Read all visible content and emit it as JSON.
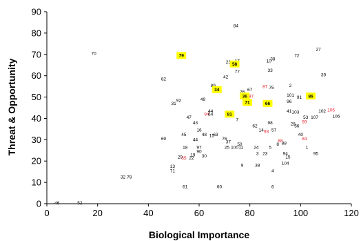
{
  "chart_data": {
    "type": "scatter",
    "title": "",
    "xlabel": "Biological Importance",
    "ylabel": "Threat & Opportunity",
    "xlim": [
      0,
      120
    ],
    "ylim": [
      0,
      90
    ],
    "xticks": [
      "0",
      "20",
      "40",
      "60",
      "80",
      "100",
      "120"
    ],
    "yticks": [
      "0",
      "10",
      "20",
      "30",
      "40",
      "50",
      "60",
      "70",
      "80",
      "90"
    ],
    "x_tick_values": [
      0,
      20,
      40,
      60,
      80,
      100,
      120
    ],
    "y_tick_values": [
      0,
      10,
      20,
      30,
      40,
      50,
      60,
      70,
      80,
      90
    ],
    "grid": false,
    "legend": "none",
    "colors": {
      "normal": "#000000",
      "red": "#e8232f",
      "highlight": "#ffff00"
    },
    "points": [
      {
        "label": "70",
        "x": 18.5,
        "y": 70.5
      },
      {
        "label": "84",
        "x": 74.5,
        "y": 83.5
      },
      {
        "label": "27",
        "x": 107,
        "y": 72.5
      },
      {
        "label": "72",
        "x": 98.5,
        "y": 69.5
      },
      {
        "label": "79",
        "x": 53,
        "y": 69.5,
        "hl": true
      },
      {
        "label": "23",
        "x": 71.5,
        "y": 66.5
      },
      {
        "label": "17",
        "x": 75,
        "y": 67
      },
      {
        "label": "58",
        "x": 74,
        "y": 65.5,
        "hl": true
      },
      {
        "label": "10",
        "x": 87.5,
        "y": 67
      },
      {
        "label": "38",
        "x": 89,
        "y": 68
      },
      {
        "label": "77",
        "x": 75,
        "y": 62
      },
      {
        "label": "33",
        "x": 88,
        "y": 62.5
      },
      {
        "label": "39",
        "x": 109,
        "y": 60.5
      },
      {
        "label": "42",
        "x": 70.5,
        "y": 59.5
      },
      {
        "label": "82",
        "x": 46,
        "y": 58.5
      },
      {
        "label": "89",
        "x": 65.5,
        "y": 55.5
      },
      {
        "label": "34",
        "x": 67,
        "y": 53.5,
        "hl": true
      },
      {
        "label": "87",
        "x": 86,
        "y": 55,
        "red": true
      },
      {
        "label": "75",
        "x": 88.5,
        "y": 54.5
      },
      {
        "label": "2",
        "x": 96,
        "y": 55.5
      },
      {
        "label": "67",
        "x": 80,
        "y": 53.5
      },
      {
        "label": "26",
        "x": 77,
        "y": 52.5
      },
      {
        "label": "101",
        "x": 96,
        "y": 51
      },
      {
        "label": "91",
        "x": 99.5,
        "y": 50
      },
      {
        "label": "36",
        "x": 78,
        "y": 50.5,
        "hl": true
      },
      {
        "label": "97",
        "x": 80.5,
        "y": 50.5,
        "red": true
      },
      {
        "label": "86",
        "x": 104,
        "y": 50.5,
        "hl": true
      },
      {
        "label": "92",
        "x": 52,
        "y": 48.5
      },
      {
        "label": "31",
        "x": 50,
        "y": 47
      },
      {
        "label": "49",
        "x": 61.5,
        "y": 49
      },
      {
        "label": "96",
        "x": 95.5,
        "y": 48
      },
      {
        "label": "71",
        "x": 79,
        "y": 47.5,
        "hl": true
      },
      {
        "label": "66",
        "x": 87,
        "y": 47,
        "hl": true
      },
      {
        "label": "41",
        "x": 95.5,
        "y": 43.5
      },
      {
        "label": "103",
        "x": 98,
        "y": 43
      },
      {
        "label": "102",
        "x": 108.5,
        "y": 43.5
      },
      {
        "label": "105",
        "x": 112,
        "y": 44,
        "red": true
      },
      {
        "label": "44",
        "x": 64.5,
        "y": 43.5
      },
      {
        "label": "94",
        "x": 63,
        "y": 42,
        "red": true
      },
      {
        "label": "64",
        "x": 64.5,
        "y": 42
      },
      {
        "label": "81",
        "x": 72,
        "y": 42,
        "hl": true
      },
      {
        "label": "47",
        "x": 56,
        "y": 40.5
      },
      {
        "label": "7",
        "x": 75,
        "y": 39.5
      },
      {
        "label": "53",
        "x": 102,
        "y": 40.5
      },
      {
        "label": "107",
        "x": 105.5,
        "y": 40.5
      },
      {
        "label": "106",
        "x": 114,
        "y": 41
      },
      {
        "label": "59",
        "x": 101.5,
        "y": 38.5,
        "red": true
      },
      {
        "label": "43",
        "x": 58.5,
        "y": 38
      },
      {
        "label": "98",
        "x": 88,
        "y": 38
      },
      {
        "label": "28",
        "x": 97,
        "y": 37.5
      },
      {
        "label": "56",
        "x": 98.5,
        "y": 36.5
      },
      {
        "label": "62",
        "x": 82,
        "y": 36.5
      },
      {
        "label": "16",
        "x": 60,
        "y": 34.5
      },
      {
        "label": "14",
        "x": 84.5,
        "y": 34.5
      },
      {
        "label": "93",
        "x": 86.5,
        "y": 34,
        "red": true
      },
      {
        "label": "57",
        "x": 89.5,
        "y": 34.5
      },
      {
        "label": "48",
        "x": 62,
        "y": 32.5
      },
      {
        "label": "15",
        "x": 65,
        "y": 32
      },
      {
        "label": "63",
        "x": 66.5,
        "y": 32.5
      },
      {
        "label": "45",
        "x": 54,
        "y": 32.5
      },
      {
        "label": "40",
        "x": 100,
        "y": 32.5
      },
      {
        "label": "44",
        "x": 58.5,
        "y": 30
      },
      {
        "label": "76",
        "x": 70,
        "y": 30.5
      },
      {
        "label": "37",
        "x": 71.5,
        "y": 29
      },
      {
        "label": "69",
        "x": 46,
        "y": 30.5
      },
      {
        "label": "84",
        "x": 101.5,
        "y": 30.5,
        "red": true
      },
      {
        "label": "88",
        "x": 92,
        "y": 29.5,
        "red": true
      },
      {
        "label": "88",
        "x": 93.5,
        "y": 28.5
      },
      {
        "label": "50",
        "x": 76,
        "y": 28
      },
      {
        "label": "8",
        "x": 91,
        "y": 28
      },
      {
        "label": "18",
        "x": 54.5,
        "y": 26.5
      },
      {
        "label": "97",
        "x": 60,
        "y": 26.5
      },
      {
        "label": "25",
        "x": 71,
        "y": 26.5
      },
      {
        "label": "100",
        "x": 74,
        "y": 26.5
      },
      {
        "label": "11",
        "x": 76.5,
        "y": 26.5
      },
      {
        "label": "24",
        "x": 82.5,
        "y": 26.5
      },
      {
        "label": "5",
        "x": 88,
        "y": 26.5
      },
      {
        "label": "1",
        "x": 102.5,
        "y": 26.5
      },
      {
        "label": "90",
        "x": 60,
        "y": 24.5
      },
      {
        "label": "19",
        "x": 57.5,
        "y": 23
      },
      {
        "label": "30",
        "x": 62,
        "y": 22.5
      },
      {
        "label": "3",
        "x": 83,
        "y": 23.5
      },
      {
        "label": "23",
        "x": 86,
        "y": 23.5
      },
      {
        "label": "94",
        "x": 94,
        "y": 23.5
      },
      {
        "label": "95",
        "x": 106,
        "y": 23.5
      },
      {
        "label": "29",
        "x": 52.5,
        "y": 22
      },
      {
        "label": "65",
        "x": 54,
        "y": 21.5,
        "red": true
      },
      {
        "label": "22",
        "x": 57,
        "y": 21.5
      },
      {
        "label": "15",
        "x": 95,
        "y": 22
      },
      {
        "label": "104",
        "x": 94,
        "y": 19
      },
      {
        "label": "13",
        "x": 49.5,
        "y": 17.5
      },
      {
        "label": "9",
        "x": 77,
        "y": 18
      },
      {
        "label": "38",
        "x": 83,
        "y": 18
      },
      {
        "label": "71",
        "x": 49.5,
        "y": 15.5
      },
      {
        "label": "4",
        "x": 89,
        "y": 15.5
      },
      {
        "label": "32",
        "x": 30,
        "y": 12.5
      },
      {
        "label": "78",
        "x": 32.5,
        "y": 12.5
      },
      {
        "label": "61",
        "x": 54.5,
        "y": 8
      },
      {
        "label": "60",
        "x": 68,
        "y": 8
      },
      {
        "label": "6",
        "x": 89,
        "y": 8
      },
      {
        "label": "46",
        "x": 4,
        "y": 0.5
      },
      {
        "label": "52",
        "x": 13,
        "y": 0.5
      }
    ]
  }
}
